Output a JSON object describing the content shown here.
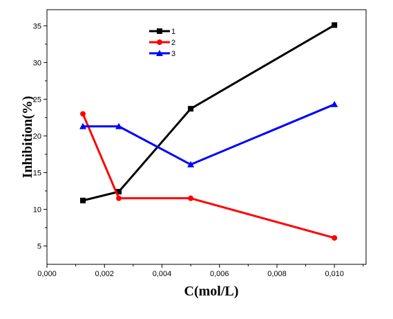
{
  "chart_data": {
    "type": "line",
    "title": "",
    "xlabel": "C(mol/L)",
    "ylabel": "Inhibition(%)",
    "xlim": [
      0.0,
      0.0111
    ],
    "ylim": [
      2.5,
      37.2
    ],
    "x_ticks": [
      "0,000",
      "0,002",
      "0,004",
      "0,006",
      "0,008",
      "0,010"
    ],
    "x_tick_values": [
      0.0,
      0.002,
      0.004,
      0.006,
      0.008,
      0.01
    ],
    "y_ticks": [
      "5",
      "10",
      "15",
      "20",
      "25",
      "30",
      "35"
    ],
    "y_tick_values": [
      5,
      10,
      15,
      20,
      25,
      30,
      35
    ],
    "grid": false,
    "legend_position": "top-center",
    "series": [
      {
        "name": "1",
        "color": "#000000",
        "marker": "square",
        "x": [
          0.00125,
          0.0025,
          0.005,
          0.01
        ],
        "y": [
          11.2,
          12.4,
          23.7,
          35.1
        ]
      },
      {
        "name": "2",
        "color": "#ff0000",
        "marker": "circle",
        "x": [
          0.00125,
          0.0025,
          0.005,
          0.01
        ],
        "y": [
          23.0,
          11.5,
          11.5,
          6.1
        ]
      },
      {
        "name": "3",
        "color": "#0000ff",
        "marker": "triangle",
        "x": [
          0.00125,
          0.0025,
          0.005,
          0.01
        ],
        "y": [
          21.3,
          21.3,
          16.1,
          24.3
        ]
      }
    ]
  }
}
